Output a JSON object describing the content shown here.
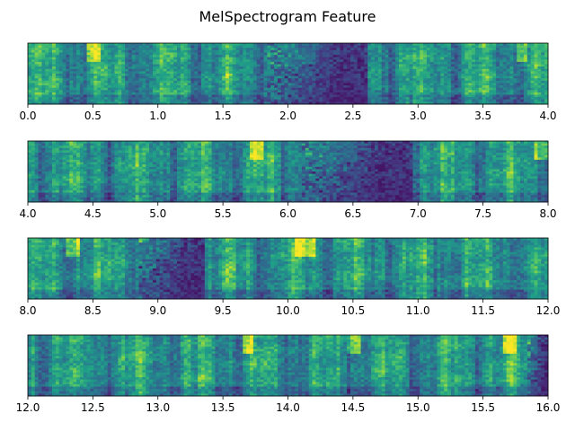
{
  "figure": {
    "title": "MelSpectrogram Feature",
    "colormap": [
      "#440154",
      "#46327e",
      "#365c8d",
      "#277f8e",
      "#1fa187",
      "#4ac16d",
      "#a0da39",
      "#fde725"
    ]
  },
  "chart_data": [
    {
      "type": "heatmap",
      "x_range": [
        0.0,
        4.0
      ],
      "xticks": [
        0.0,
        0.5,
        1.0,
        1.5,
        2.0,
        2.5,
        3.0,
        3.5,
        4.0
      ],
      "xtick_labels": [
        "0.0",
        "0.5",
        "1.0",
        "1.5",
        "2.0",
        "2.5",
        "3.0",
        "3.5",
        "4.0"
      ],
      "yticks": [],
      "quiet_regions": [
        [
          1.85,
          2.6
        ]
      ],
      "quiet_style": "progressive",
      "bright_regions": [
        [
          3.75,
          3.85
        ],
        [
          0.45,
          0.55
        ]
      ]
    },
    {
      "type": "heatmap",
      "x_range": [
        4.0,
        8.0
      ],
      "xticks": [
        4.0,
        4.5,
        5.0,
        5.5,
        6.0,
        6.5,
        7.0,
        7.5,
        8.0
      ],
      "xtick_labels": [
        "4.0",
        "4.5",
        "5.0",
        "5.5",
        "6.0",
        "6.5",
        "7.0",
        "7.5",
        "8.0"
      ],
      "yticks": [],
      "quiet_regions": [
        [
          6.1,
          6.95
        ]
      ],
      "quiet_style": "progressive",
      "bright_regions": [
        [
          5.7,
          5.8
        ],
        [
          7.9,
          8.0
        ]
      ]
    },
    {
      "type": "heatmap",
      "x_range": [
        8.0,
        12.0
      ],
      "xticks": [
        8.0,
        8.5,
        9.0,
        9.5,
        10.0,
        10.5,
        11.0,
        11.5,
        12.0
      ],
      "xtick_labels": [
        "8.0",
        "8.5",
        "9.0",
        "9.5",
        "10.0",
        "10.5",
        "11.0",
        "11.5",
        "12.0"
      ],
      "yticks": [],
      "quiet_regions": [
        [
          8.85,
          9.35
        ]
      ],
      "quiet_style": "progressive",
      "bright_regions": [
        [
          8.3,
          8.4
        ],
        [
          10.05,
          10.2
        ]
      ]
    },
    {
      "type": "heatmap",
      "x_range": [
        12.0,
        16.0
      ],
      "xticks": [
        12.0,
        12.5,
        13.0,
        13.5,
        14.0,
        14.5,
        15.0,
        15.5,
        16.0
      ],
      "xtick_labels": [
        "12.0",
        "12.5",
        "13.0",
        "13.5",
        "14.0",
        "14.5",
        "15.0",
        "15.5",
        "16.0"
      ],
      "yticks": [],
      "quiet_regions": [
        [
          15.85,
          16.0
        ]
      ],
      "quiet_style": "progressive",
      "bright_regions": [
        [
          13.65,
          13.72
        ],
        [
          14.45,
          14.55
        ],
        [
          15.65,
          15.75
        ]
      ]
    }
  ]
}
